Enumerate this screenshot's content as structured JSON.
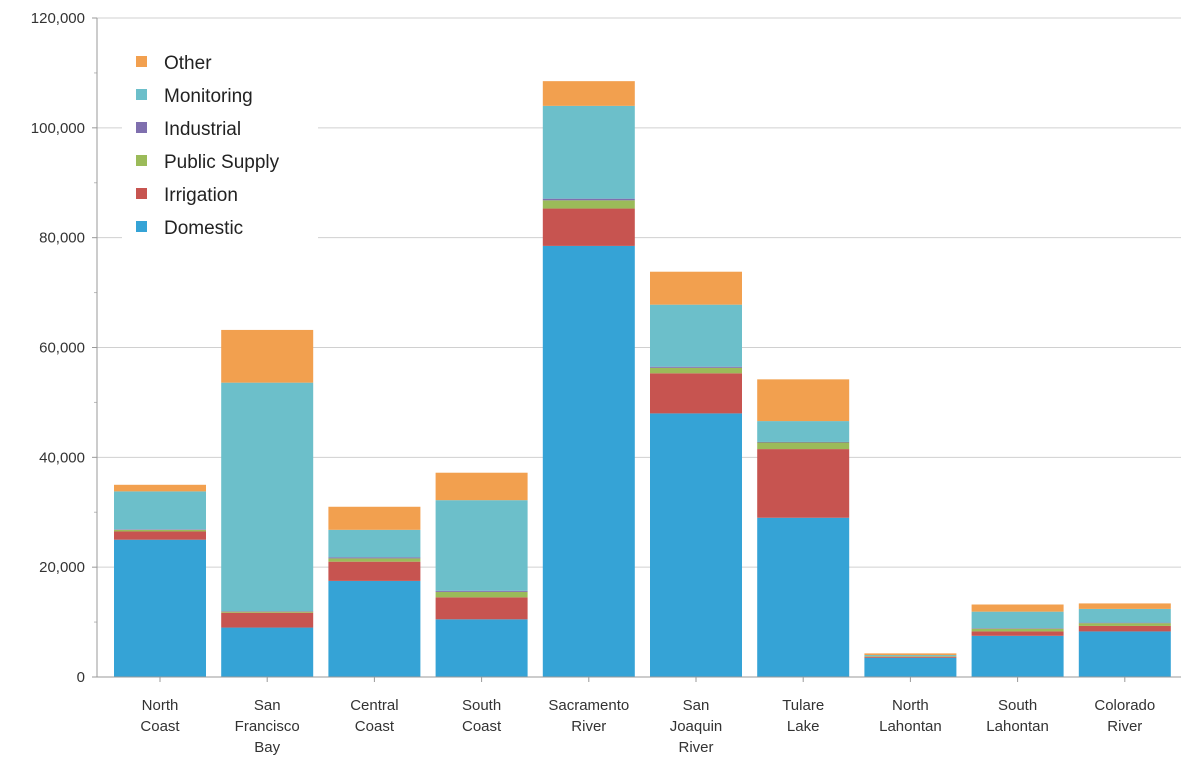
{
  "chart_data": {
    "type": "bar",
    "stacked": true,
    "categories": [
      [
        "North",
        "Coast"
      ],
      [
        "San",
        "Francisco",
        "Bay"
      ],
      [
        "Central",
        "Coast"
      ],
      [
        "South",
        "Coast"
      ],
      [
        "Sacramento",
        "River"
      ],
      [
        "San",
        "Joaquin",
        "River"
      ],
      [
        "Tulare",
        "Lake"
      ],
      [
        "North",
        "Lahontan"
      ],
      [
        "South",
        "Lahontan"
      ],
      [
        "Colorado",
        "River"
      ]
    ],
    "series": [
      {
        "name": "Domestic",
        "color": "#35a3d6",
        "values": [
          25000,
          9000,
          17500,
          10500,
          78500,
          48000,
          29000,
          3500,
          7500,
          8300
        ]
      },
      {
        "name": "Irrigation",
        "color": "#c75450",
        "values": [
          1500,
          2700,
          3500,
          4000,
          6800,
          7300,
          12500,
          200,
          800,
          1000
        ]
      },
      {
        "name": "Public Supply",
        "color": "#9bbb59",
        "values": [
          300,
          200,
          600,
          1000,
          1500,
          1000,
          1200,
          100,
          500,
          500
        ]
      },
      {
        "name": "Industrial",
        "color": "#7f6fae",
        "values": [
          100,
          100,
          200,
          200,
          300,
          200,
          100,
          0,
          100,
          100
        ]
      },
      {
        "name": "Monitoring",
        "color": "#6cbfca",
        "values": [
          6900,
          41600,
          5000,
          16500,
          16900,
          11300,
          3800,
          200,
          3000,
          2500
        ]
      },
      {
        "name": "Other",
        "color": "#f2a04f",
        "values": [
          1200,
          9600,
          4200,
          5000,
          4500,
          6000,
          7600,
          300,
          1300,
          1000
        ]
      }
    ],
    "yticks": [
      "0",
      "20,000",
      "40,000",
      "60,000",
      "80,000",
      "100,000",
      "120,000"
    ],
    "ylim": [
      0,
      120000
    ],
    "grid": true,
    "legend": "top-left"
  }
}
